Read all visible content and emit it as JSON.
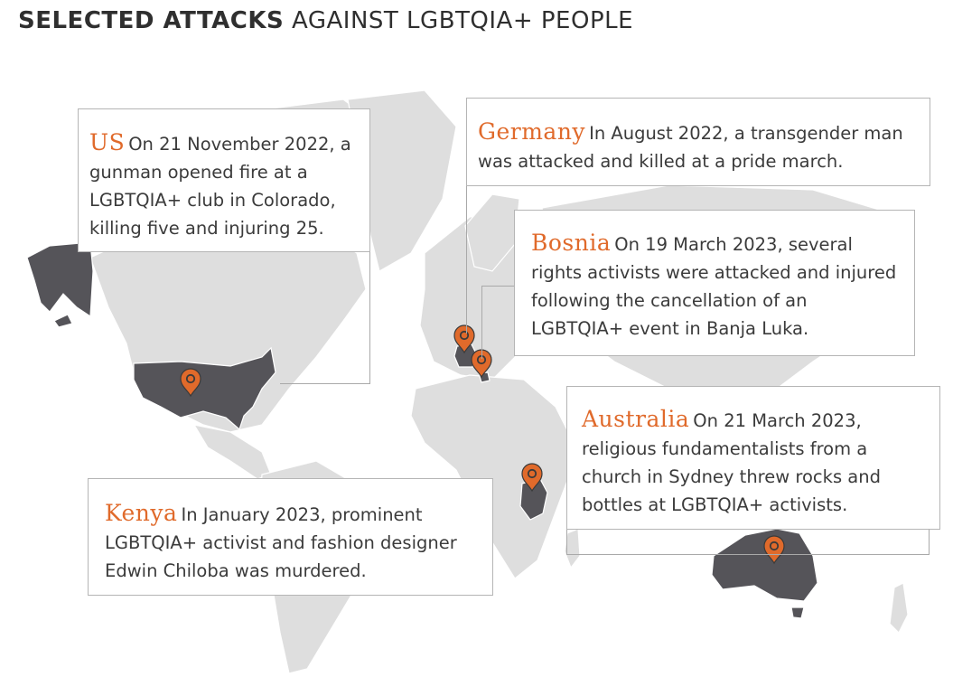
{
  "title": {
    "strong": "SELECTED ATTACKS",
    "light": "AGAINST LGBTQIA+ PEOPLE"
  },
  "colors": {
    "land": "#dedede",
    "highlight": "#555459",
    "pin": "#e06a2b",
    "country_label": "#e06a2b",
    "card_border": "#b5b5b5"
  },
  "cards": {
    "us": {
      "country": "US",
      "text": "On 21 November 2022, a gunman opened fire at a LGBTQIA+ club in Colorado, killing five and injuring 25."
    },
    "germany": {
      "country": "Germany",
      "text": "In August 2022, a transgender man was attacked and killed at a pride march."
    },
    "bosnia": {
      "country": "Bosnia",
      "text": "On 19 March 2023, several rights activists were attacked and injured following the cancellation of an LGBTQIA+ event in Banja Luka."
    },
    "australia": {
      "country": "Australia",
      "text": "On 21 March 2023, religious fundamentalists from a church in Sydney threw rocks and bottles at LGBTQIA+ activists."
    },
    "kenya": {
      "country": "Kenya",
      "text": "In January 2023, prominent LGBTQIA+ activist and fashion designer Edwin Chiloba was murdered."
    }
  },
  "markers": [
    {
      "id": "us",
      "icon": "map-pin-icon"
    },
    {
      "id": "germany",
      "icon": "map-pin-icon"
    },
    {
      "id": "bosnia",
      "icon": "map-pin-icon"
    },
    {
      "id": "kenya",
      "icon": "map-pin-icon"
    },
    {
      "id": "australia",
      "icon": "map-pin-icon"
    }
  ]
}
